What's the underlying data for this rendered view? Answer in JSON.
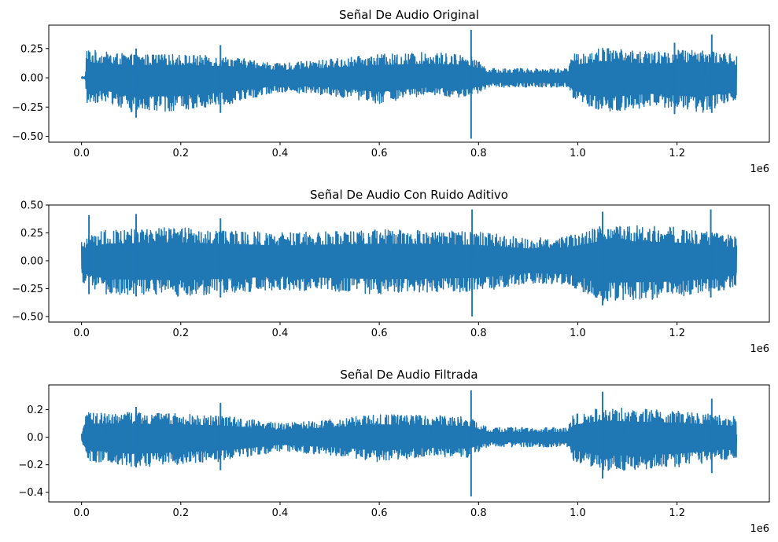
{
  "chart_data": [
    {
      "type": "line",
      "title": "Señal De Audio Original",
      "x_scale_label": "1e6",
      "xlim": [
        -0.066,
        1.386
      ],
      "ylim": [
        -0.55,
        0.45
      ],
      "x_ticks": [
        0.0,
        0.2,
        0.4,
        0.6,
        0.8,
        1.0,
        1.2
      ],
      "x_tick_labels": [
        "0.0",
        "0.2",
        "0.4",
        "0.6",
        "0.8",
        "1.0",
        "1.2"
      ],
      "y_ticks": [
        0.25,
        0.0,
        -0.25,
        -0.5
      ],
      "y_tick_labels": [
        "0.25",
        "0.00",
        "−0.25",
        "−0.50"
      ],
      "color": "#1f77b4",
      "series": {
        "x_range": [
          0,
          1.32
        ],
        "envelope": [
          {
            "x": 0.0,
            "hi": 0.01,
            "lo": -0.01
          },
          {
            "x": 0.008,
            "hi": 0.01,
            "lo": -0.01
          },
          {
            "x": 0.01,
            "hi": 0.25,
            "lo": -0.22
          },
          {
            "x": 0.05,
            "hi": 0.22,
            "lo": -0.2
          },
          {
            "x": 0.1,
            "hi": 0.2,
            "lo": -0.3
          },
          {
            "x": 0.2,
            "hi": 0.2,
            "lo": -0.28
          },
          {
            "x": 0.3,
            "hi": 0.18,
            "lo": -0.22
          },
          {
            "x": 0.4,
            "hi": 0.12,
            "lo": -0.12
          },
          {
            "x": 0.5,
            "hi": 0.16,
            "lo": -0.15
          },
          {
            "x": 0.6,
            "hi": 0.2,
            "lo": -0.22
          },
          {
            "x": 0.7,
            "hi": 0.22,
            "lo": -0.15
          },
          {
            "x": 0.78,
            "hi": 0.2,
            "lo": -0.18
          },
          {
            "x": 0.82,
            "hi": 0.08,
            "lo": -0.08
          },
          {
            "x": 0.9,
            "hi": 0.08,
            "lo": -0.08
          },
          {
            "x": 0.98,
            "hi": 0.08,
            "lo": -0.08
          },
          {
            "x": 0.99,
            "hi": 0.2,
            "lo": -0.2
          },
          {
            "x": 1.05,
            "hi": 0.26,
            "lo": -0.3
          },
          {
            "x": 1.15,
            "hi": 0.22,
            "lo": -0.25
          },
          {
            "x": 1.25,
            "hi": 0.25,
            "lo": -0.3
          },
          {
            "x": 1.32,
            "hi": 0.2,
            "lo": -0.2
          }
        ],
        "spikes": [
          {
            "x": 0.785,
            "hi": 0.41,
            "lo": -0.52
          },
          {
            "x": 1.27,
            "hi": 0.37,
            "lo": -0.3
          },
          {
            "x": 1.195,
            "hi": 0.3,
            "lo": -0.31
          },
          {
            "x": 0.28,
            "hi": 0.28,
            "lo": -0.3
          },
          {
            "x": 0.11,
            "hi": 0.25,
            "lo": -0.34
          }
        ]
      }
    },
    {
      "type": "line",
      "title": "Señal De Audio Con Ruido Aditivo",
      "x_scale_label": "1e6",
      "xlim": [
        -0.066,
        1.386
      ],
      "ylim": [
        -0.55,
        0.5
      ],
      "x_ticks": [
        0.0,
        0.2,
        0.4,
        0.6,
        0.8,
        1.0,
        1.2
      ],
      "x_tick_labels": [
        "0.0",
        "0.2",
        "0.4",
        "0.6",
        "0.8",
        "1.0",
        "1.2"
      ],
      "y_ticks": [
        0.5,
        0.25,
        0.0,
        -0.25,
        -0.5
      ],
      "y_tick_labels": [
        "0.50",
        "0.25",
        "0.00",
        "−0.25",
        "−0.50"
      ],
      "color": "#1f77b4",
      "series": {
        "x_range": [
          0,
          1.32
        ],
        "envelope": [
          {
            "x": 0.0,
            "hi": 0.2,
            "lo": -0.2
          },
          {
            "x": 0.05,
            "hi": 0.28,
            "lo": -0.3
          },
          {
            "x": 0.2,
            "hi": 0.3,
            "lo": -0.32
          },
          {
            "x": 0.4,
            "hi": 0.25,
            "lo": -0.26
          },
          {
            "x": 0.6,
            "hi": 0.28,
            "lo": -0.3
          },
          {
            "x": 0.8,
            "hi": 0.26,
            "lo": -0.28
          },
          {
            "x": 0.9,
            "hi": 0.2,
            "lo": -0.2
          },
          {
            "x": 0.98,
            "hi": 0.22,
            "lo": -0.22
          },
          {
            "x": 1.05,
            "hi": 0.33,
            "lo": -0.36
          },
          {
            "x": 1.2,
            "hi": 0.3,
            "lo": -0.34
          },
          {
            "x": 1.32,
            "hi": 0.22,
            "lo": -0.24
          }
        ],
        "spikes": [
          {
            "x": 0.787,
            "hi": 0.46,
            "lo": -0.5
          },
          {
            "x": 1.268,
            "hi": 0.46,
            "lo": -0.33
          },
          {
            "x": 1.05,
            "hi": 0.44,
            "lo": -0.4
          },
          {
            "x": 0.11,
            "hi": 0.42,
            "lo": -0.32
          },
          {
            "x": 0.015,
            "hi": 0.41,
            "lo": -0.3
          },
          {
            "x": 0.28,
            "hi": 0.38,
            "lo": -0.33
          }
        ]
      }
    },
    {
      "type": "line",
      "title": "Señal De Audio Filtrada",
      "x_scale_label": "1e6",
      "xlim": [
        -0.066,
        1.386
      ],
      "ylim": [
        -0.47,
        0.38
      ],
      "x_ticks": [
        0.0,
        0.2,
        0.4,
        0.6,
        0.8,
        1.0,
        1.2
      ],
      "x_tick_labels": [
        "0.0",
        "0.2",
        "0.4",
        "0.6",
        "0.8",
        "1.0",
        "1.2"
      ],
      "y_ticks": [
        0.2,
        0.0,
        -0.2,
        -0.4
      ],
      "y_tick_labels": [
        "0.2",
        "0.0",
        "−0.2",
        "−0.4"
      ],
      "color": "#1f77b4",
      "series": {
        "x_range": [
          0,
          1.32
        ],
        "envelope": [
          {
            "x": 0.0,
            "hi": 0.03,
            "lo": -0.05
          },
          {
            "x": 0.01,
            "hi": 0.18,
            "lo": -0.17
          },
          {
            "x": 0.1,
            "hi": 0.18,
            "lo": -0.22
          },
          {
            "x": 0.2,
            "hi": 0.17,
            "lo": -0.2
          },
          {
            "x": 0.3,
            "hi": 0.15,
            "lo": -0.17
          },
          {
            "x": 0.4,
            "hi": 0.1,
            "lo": -0.1
          },
          {
            "x": 0.5,
            "hi": 0.13,
            "lo": -0.13
          },
          {
            "x": 0.6,
            "hi": 0.17,
            "lo": -0.18
          },
          {
            "x": 0.7,
            "hi": 0.16,
            "lo": -0.14
          },
          {
            "x": 0.78,
            "hi": 0.15,
            "lo": -0.15
          },
          {
            "x": 0.82,
            "hi": 0.07,
            "lo": -0.07
          },
          {
            "x": 0.98,
            "hi": 0.07,
            "lo": -0.07
          },
          {
            "x": 0.99,
            "hi": 0.16,
            "lo": -0.17
          },
          {
            "x": 1.05,
            "hi": 0.22,
            "lo": -0.25
          },
          {
            "x": 1.2,
            "hi": 0.19,
            "lo": -0.22
          },
          {
            "x": 1.32,
            "hi": 0.15,
            "lo": -0.15
          }
        ],
        "spikes": [
          {
            "x": 0.785,
            "hi": 0.34,
            "lo": -0.43
          },
          {
            "x": 1.05,
            "hi": 0.33,
            "lo": -0.3
          },
          {
            "x": 1.27,
            "hi": 0.28,
            "lo": -0.26
          },
          {
            "x": 0.28,
            "hi": 0.25,
            "lo": -0.24
          },
          {
            "x": 0.11,
            "hi": 0.22,
            "lo": -0.22
          }
        ]
      }
    }
  ]
}
